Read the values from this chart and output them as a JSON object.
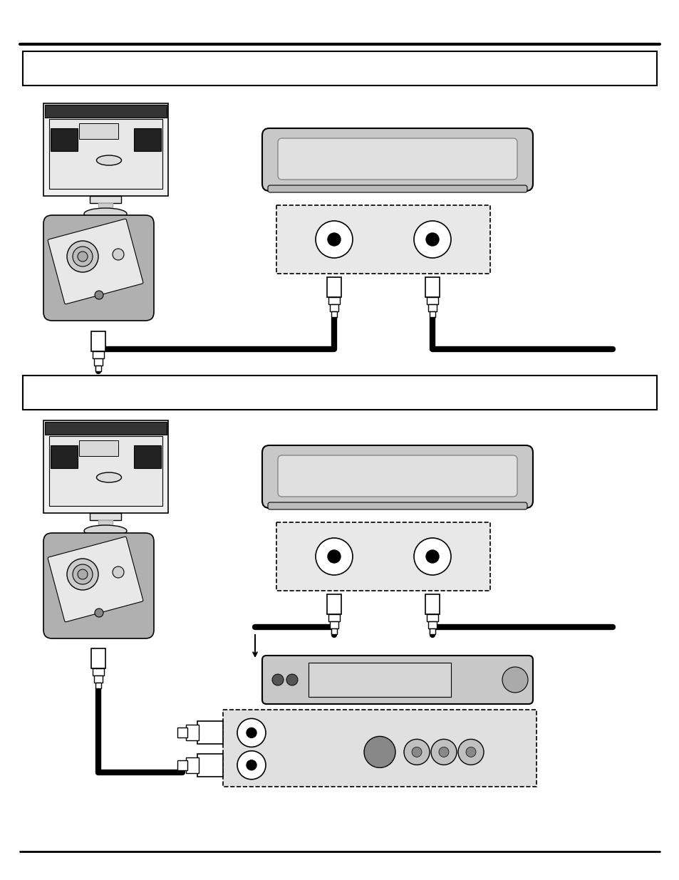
{
  "bg_color": "#ffffff",
  "gray_light": "#c8c8c8",
  "gray_med": "#b0b0b0",
  "gray_box": "#b8b8b8",
  "figsize": [
    9.54,
    12.35
  ],
  "dpi": 100
}
